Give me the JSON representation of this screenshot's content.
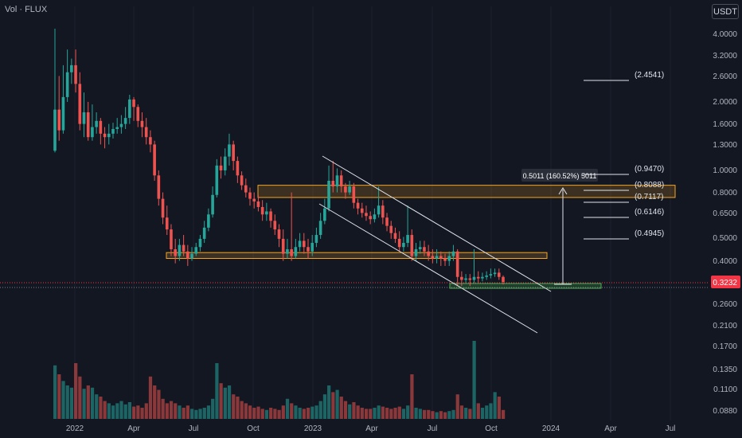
{
  "header": {
    "volume_label": "Vol · FLUX",
    "unit_button": "USDT"
  },
  "colors": {
    "background": "#131722",
    "up": "#26a69a",
    "down": "#ef5350",
    "zone": "#f5a623",
    "support": "#4caf50",
    "channel": "#e0e3eb",
    "price_tag": "#f23645"
  },
  "chart_data": {
    "type": "candlestick",
    "scale": "log",
    "y_ticks": [
      "4.0000",
      "3.2000",
      "2.6000",
      "2.0000",
      "1.6000",
      "1.3000",
      "1.0000",
      "0.8000",
      "0.6500",
      "0.5000",
      "0.4000",
      "0.2600",
      "0.2100",
      "0.1700",
      "0.1350",
      "0.1100",
      "0.0880"
    ],
    "x_ticks": [
      "2022",
      "Apr",
      "Jul",
      "Oct",
      "2023",
      "Apr",
      "Jul",
      "Oct",
      "2024",
      "Apr",
      "Jul"
    ],
    "current_price": "0.3232",
    "price_range_label": "0.5011 (160.52%) 5011",
    "fib_levels": [
      {
        "label": "(2.4541)",
        "value": 2.4541
      },
      {
        "label": "(0.9470)",
        "value": 0.947
      },
      {
        "label": "(0.8088)",
        "value": 0.8088
      },
      {
        "label": "(0.7117)",
        "value": 0.7117
      },
      {
        "label": "(0.6146)",
        "value": 0.6146
      },
      {
        "label": "(0.4945)",
        "value": 0.4945
      }
    ],
    "resistance_zone": [
      0.76,
      0.86
    ],
    "support_zone": [
      0.41,
      0.435
    ],
    "base_zone": [
      0.325,
      0.335
    ],
    "candles": [
      [
        1.22,
        1.85,
        4.2,
        1.2,
        48
      ],
      [
        1.85,
        1.5,
        2.6,
        1.35,
        40
      ],
      [
        1.5,
        2.1,
        2.9,
        1.45,
        34
      ],
      [
        2.1,
        2.7,
        3.4,
        2.0,
        30
      ],
      [
        2.7,
        2.9,
        3.1,
        2.4,
        28
      ],
      [
        2.9,
        2.4,
        3.4,
        2.2,
        50
      ],
      [
        2.4,
        1.6,
        2.7,
        1.5,
        38
      ],
      [
        1.6,
        1.8,
        2.2,
        1.4,
        27
      ],
      [
        1.8,
        1.4,
        2.0,
        1.35,
        30
      ],
      [
        1.4,
        1.55,
        1.95,
        1.35,
        28
      ],
      [
        1.55,
        1.65,
        1.8,
        1.45,
        22
      ],
      [
        1.65,
        1.45,
        1.7,
        1.3,
        20
      ],
      [
        1.45,
        1.4,
        1.55,
        1.25,
        16
      ],
      [
        1.4,
        1.45,
        1.6,
        1.3,
        14
      ],
      [
        1.45,
        1.52,
        1.62,
        1.38,
        12
      ],
      [
        1.52,
        1.55,
        1.7,
        1.45,
        14
      ],
      [
        1.55,
        1.6,
        1.75,
        1.45,
        16
      ],
      [
        1.6,
        1.7,
        1.9,
        1.52,
        13
      ],
      [
        1.7,
        2.05,
        2.15,
        1.6,
        15
      ],
      [
        2.05,
        1.9,
        2.1,
        1.65,
        11
      ],
      [
        1.9,
        1.65,
        1.95,
        1.55,
        12
      ],
      [
        1.65,
        1.55,
        1.8,
        1.4,
        10
      ],
      [
        1.55,
        1.4,
        1.7,
        1.3,
        14
      ],
      [
        1.4,
        1.3,
        1.5,
        1.2,
        38
      ],
      [
        1.3,
        0.95,
        1.35,
        0.9,
        30
      ],
      [
        0.95,
        0.75,
        1.0,
        0.7,
        26
      ],
      [
        0.75,
        0.62,
        0.8,
        0.58,
        18
      ],
      [
        0.62,
        0.55,
        0.7,
        0.52,
        14
      ],
      [
        0.55,
        0.45,
        0.58,
        0.42,
        16
      ],
      [
        0.45,
        0.42,
        0.5,
        0.39,
        14
      ],
      [
        0.42,
        0.47,
        0.5,
        0.4,
        12
      ],
      [
        0.47,
        0.44,
        0.52,
        0.42,
        10
      ],
      [
        0.44,
        0.41,
        0.47,
        0.38,
        12
      ],
      [
        0.41,
        0.43,
        0.46,
        0.4,
        9
      ],
      [
        0.43,
        0.46,
        0.48,
        0.42,
        8
      ],
      [
        0.46,
        0.5,
        0.52,
        0.44,
        9
      ],
      [
        0.5,
        0.56,
        0.6,
        0.48,
        10
      ],
      [
        0.56,
        0.64,
        0.68,
        0.54,
        12
      ],
      [
        0.64,
        0.78,
        0.85,
        0.62,
        18
      ],
      [
        0.78,
        1.05,
        1.12,
        0.76,
        50
      ],
      [
        1.05,
        1.0,
        1.15,
        0.92,
        32
      ],
      [
        1.0,
        1.15,
        1.25,
        0.95,
        28
      ],
      [
        1.15,
        1.3,
        1.45,
        1.05,
        30
      ],
      [
        1.3,
        1.1,
        1.35,
        1.0,
        22
      ],
      [
        1.1,
        0.95,
        1.15,
        0.88,
        20
      ],
      [
        0.95,
        0.86,
        0.99,
        0.82,
        16
      ],
      [
        0.86,
        0.8,
        0.92,
        0.76,
        14
      ],
      [
        0.8,
        0.75,
        0.84,
        0.7,
        12
      ],
      [
        0.75,
        0.73,
        0.8,
        0.68,
        10
      ],
      [
        0.73,
        0.69,
        0.78,
        0.66,
        11
      ],
      [
        0.69,
        0.64,
        0.74,
        0.6,
        9
      ],
      [
        0.64,
        0.66,
        0.72,
        0.6,
        8
      ],
      [
        0.66,
        0.6,
        0.68,
        0.56,
        10
      ],
      [
        0.6,
        0.55,
        0.64,
        0.52,
        9
      ],
      [
        0.55,
        0.5,
        0.58,
        0.46,
        8
      ],
      [
        0.5,
        0.43,
        0.55,
        0.4,
        12
      ],
      [
        0.43,
        0.45,
        0.5,
        0.41,
        18
      ],
      [
        0.45,
        0.42,
        0.8,
        0.4,
        14
      ],
      [
        0.42,
        0.46,
        0.5,
        0.41,
        12
      ],
      [
        0.46,
        0.49,
        0.53,
        0.44,
        10
      ],
      [
        0.49,
        0.46,
        0.53,
        0.43,
        9
      ],
      [
        0.46,
        0.44,
        0.5,
        0.41,
        10
      ],
      [
        0.44,
        0.48,
        0.52,
        0.42,
        11
      ],
      [
        0.48,
        0.52,
        0.56,
        0.46,
        12
      ],
      [
        0.52,
        0.6,
        0.65,
        0.5,
        16
      ],
      [
        0.6,
        0.68,
        0.75,
        0.58,
        22
      ],
      [
        0.68,
        0.9,
        1.05,
        0.66,
        30
      ],
      [
        0.9,
        0.85,
        1.1,
        0.8,
        24
      ],
      [
        0.85,
        0.95,
        1.02,
        0.8,
        26
      ],
      [
        0.95,
        0.85,
        1.0,
        0.8,
        20
      ],
      [
        0.85,
        0.8,
        0.88,
        0.75,
        16
      ],
      [
        0.8,
        0.85,
        0.9,
        0.78,
        13
      ],
      [
        0.85,
        0.72,
        0.88,
        0.68,
        15
      ],
      [
        0.72,
        0.68,
        0.75,
        0.64,
        12
      ],
      [
        0.68,
        0.65,
        0.72,
        0.62,
        10
      ],
      [
        0.65,
        0.63,
        0.7,
        0.6,
        9
      ],
      [
        0.63,
        0.61,
        0.66,
        0.58,
        9
      ],
      [
        0.61,
        0.64,
        0.68,
        0.59,
        10
      ],
      [
        0.64,
        0.7,
        0.85,
        0.62,
        12
      ],
      [
        0.7,
        0.62,
        0.74,
        0.58,
        11
      ],
      [
        0.62,
        0.57,
        0.65,
        0.54,
        10
      ],
      [
        0.57,
        0.53,
        0.6,
        0.5,
        9
      ],
      [
        0.53,
        0.5,
        0.56,
        0.48,
        10
      ],
      [
        0.5,
        0.46,
        0.54,
        0.44,
        11
      ],
      [
        0.46,
        0.48,
        0.51,
        0.44,
        9
      ],
      [
        0.48,
        0.52,
        0.7,
        0.46,
        12
      ],
      [
        0.52,
        0.42,
        0.55,
        0.4,
        40
      ],
      [
        0.42,
        0.45,
        0.48,
        0.4,
        10
      ],
      [
        0.45,
        0.46,
        0.49,
        0.43,
        9
      ],
      [
        0.46,
        0.44,
        0.49,
        0.42,
        8
      ],
      [
        0.44,
        0.42,
        0.47,
        0.4,
        8
      ],
      [
        0.42,
        0.41,
        0.45,
        0.39,
        7
      ],
      [
        0.41,
        0.42,
        0.45,
        0.39,
        6
      ],
      [
        0.42,
        0.41,
        0.44,
        0.38,
        7
      ],
      [
        0.41,
        0.4,
        0.43,
        0.38,
        6
      ],
      [
        0.4,
        0.42,
        0.44,
        0.38,
        7
      ],
      [
        0.42,
        0.44,
        0.47,
        0.4,
        8
      ],
      [
        0.44,
        0.34,
        0.45,
        0.31,
        22
      ],
      [
        0.34,
        0.33,
        0.36,
        0.31,
        12
      ],
      [
        0.33,
        0.335,
        0.35,
        0.32,
        10
      ],
      [
        0.335,
        0.33,
        0.35,
        0.31,
        9
      ],
      [
        0.33,
        0.34,
        0.45,
        0.32,
        70
      ],
      [
        0.34,
        0.335,
        0.36,
        0.32,
        14
      ],
      [
        0.335,
        0.34,
        0.355,
        0.325,
        10
      ],
      [
        0.34,
        0.345,
        0.36,
        0.33,
        12
      ],
      [
        0.345,
        0.35,
        0.37,
        0.335,
        14
      ],
      [
        0.35,
        0.355,
        0.37,
        0.34,
        24
      ],
      [
        0.355,
        0.34,
        0.37,
        0.33,
        20
      ],
      [
        0.34,
        0.3232,
        0.345,
        0.315,
        8
      ]
    ]
  }
}
